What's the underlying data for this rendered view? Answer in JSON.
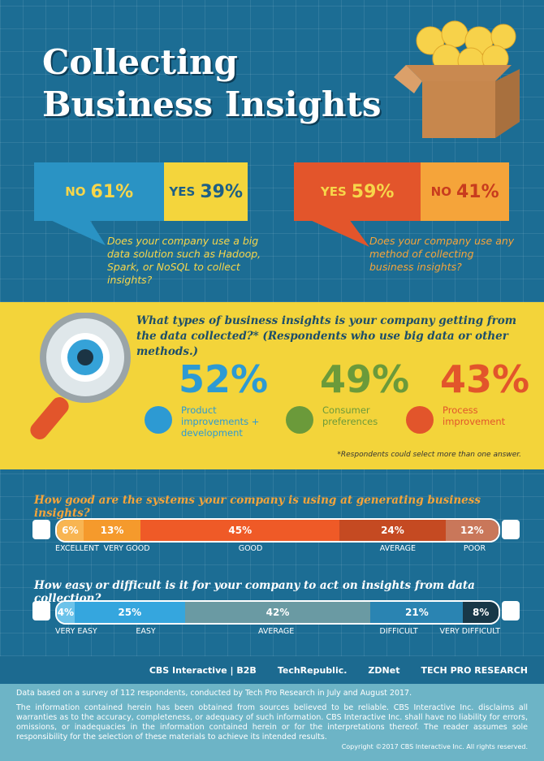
{
  "header": {
    "title_lines": [
      "Collecting",
      "Business Insights"
    ]
  },
  "big_data": {
    "question": "Does your company use a big data solution such as Hadoop, Spark, or NoSQL to collect insights?",
    "answers": [
      {
        "label": "NO",
        "value": 61,
        "value_label": "61%",
        "color": "#2a93c4",
        "text_color": "#f7d64a"
      },
      {
        "label": "YES",
        "value": 39,
        "value_label": "39%",
        "color": "#f4d53c",
        "text_color": "#1d5f86"
      }
    ]
  },
  "any_method": {
    "question": "Does your company use any method of collecting business insights?",
    "answers": [
      {
        "label": "YES",
        "value": 59,
        "value_label": "59%",
        "color": "#e3552b",
        "text_color": "#f7d64a"
      },
      {
        "label": "NO",
        "value": 41,
        "value_label": "41%",
        "color": "#f5a43a",
        "text_color": "#c83c1e"
      }
    ]
  },
  "insights": {
    "question": "What types of business insights is your company getting from the data collected?* (Respondents who use big data or other methods.)",
    "items": [
      {
        "value_label": "52%",
        "label": "Product improvements + development",
        "color": "#2d9ad3"
      },
      {
        "value_label": "49%",
        "label": "Consumer preferences",
        "color": "#6b9a3a"
      },
      {
        "value_label": "43%",
        "label": "Process improvement",
        "color": "#e2552b"
      }
    ],
    "footnote": "*Respondents could select more than one answer."
  },
  "systems": {
    "question": "How good are the systems your company is using at generating business insights?",
    "segments": [
      {
        "label": "EXCELLENT",
        "value": 6,
        "value_label": "6%",
        "color": "#f8b552"
      },
      {
        "label": "VERY GOOD",
        "value": 13,
        "value_label": "13%",
        "color": "#f59a2c"
      },
      {
        "label": "GOOD",
        "value": 45,
        "value_label": "45%",
        "color": "#ef5a27"
      },
      {
        "label": "AVERAGE",
        "value": 24,
        "value_label": "24%",
        "color": "#c54a22"
      },
      {
        "label": "POOR",
        "value": 12,
        "value_label": "12%",
        "color": "#c9775a"
      }
    ]
  },
  "ease": {
    "question": "How easy or difficult is it for your company to act on insights from data collection?",
    "segments": [
      {
        "label": "VERY EASY",
        "value": 4,
        "value_label": "4%",
        "color": "#6cc3ea"
      },
      {
        "label": "EASY",
        "value": 25,
        "value_label": "25%",
        "color": "#35a6de"
      },
      {
        "label": "AVERAGE",
        "value": 42,
        "value_label": "42%",
        "color": "#6a9aa3"
      },
      {
        "label": "DIFFICULT",
        "value": 21,
        "value_label": "21%",
        "color": "#2a84b2"
      },
      {
        "label": "VERY DIFFICULT",
        "value": 8,
        "value_label": "8%",
        "color": "#183848"
      }
    ]
  },
  "logos": [
    "CBS Interactive | B2B",
    "TechRepublic.",
    "ZDNet",
    "TECH PRO RESEARCH"
  ],
  "footer": {
    "survey": "Data based on a survey of 112 respondents, conducted by Tech Pro Research in July and August 2017.",
    "disclaimer": "The information contained herein has been obtained from sources believed to be reliable. CBS Interactive Inc. disclaims all warranties as to the accuracy, completeness, or adequacy of such information. CBS Interactive Inc. shall have no liability for errors, omissions, or inadequacies in the information contained herein or for the interpretations thereof. The reader assumes sole responsibility for the selection of these materials to achieve its intended results.",
    "copyright": "Copyright ©2017 CBS Interactive Inc. All rights reserved."
  }
}
